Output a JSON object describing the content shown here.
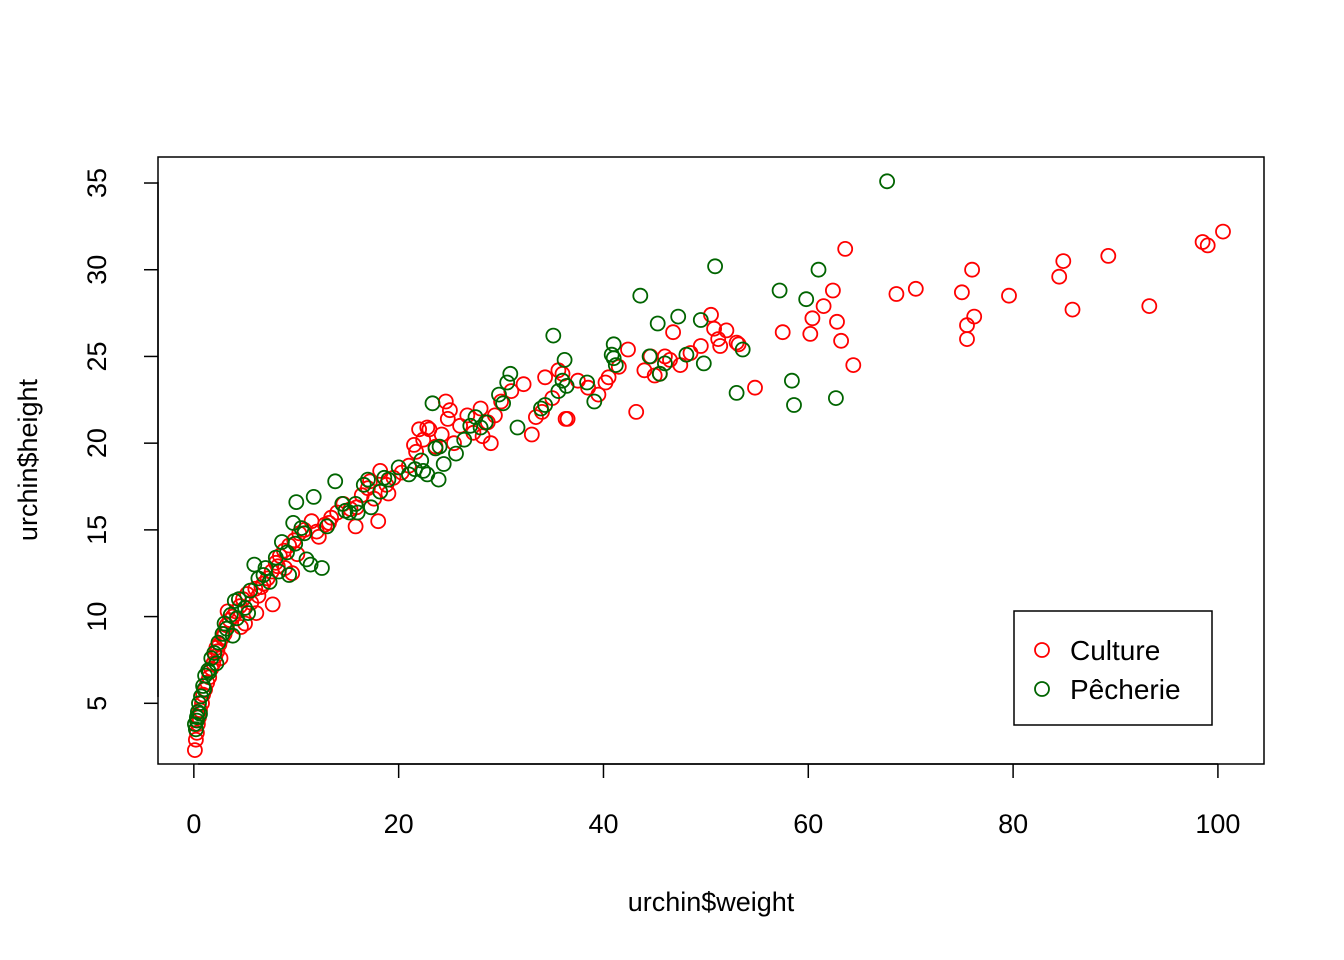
{
  "chart_data": {
    "type": "scatter",
    "title": "",
    "xlabel": "urchin$weight",
    "ylabel": "urchin$height",
    "xlim": [
      -3.5,
      104.5
    ],
    "ylim": [
      1.5,
      36.5
    ],
    "x_ticks": [
      0,
      20,
      40,
      60,
      80,
      100
    ],
    "y_ticks": [
      5,
      10,
      15,
      20,
      25,
      30,
      35
    ],
    "x_tick_labels": [
      "0",
      "20",
      "40",
      "60",
      "80",
      "100"
    ],
    "y_tick_labels": [
      "5",
      "10",
      "15",
      "20",
      "25",
      "30",
      "35"
    ],
    "grid": false,
    "legend_position": "bottom-right",
    "series": [
      {
        "name": "Culture",
        "color": "#FF0000",
        "marker": "open-circle",
        "points": [
          [
            0.1,
            2.3
          ],
          [
            0.2,
            2.9
          ],
          [
            0.3,
            3.3
          ],
          [
            0.4,
            3.8
          ],
          [
            0.5,
            4.2
          ],
          [
            0.6,
            4.6
          ],
          [
            0.8,
            5.0
          ],
          [
            0.9,
            5.5
          ],
          [
            1.1,
            5.8
          ],
          [
            1.3,
            6.2
          ],
          [
            1.5,
            6.5
          ],
          [
            1.7,
            7.0
          ],
          [
            1.9,
            7.3
          ],
          [
            2.1,
            7.7
          ],
          [
            2.3,
            8.0
          ],
          [
            2.5,
            8.4
          ],
          [
            2.8,
            8.8
          ],
          [
            3.0,
            9.0
          ],
          [
            3.2,
            9.5
          ],
          [
            3.5,
            9.8
          ],
          [
            2.2,
            8.2
          ],
          [
            2.6,
            7.6
          ],
          [
            3.8,
            10.0
          ],
          [
            4.1,
            10.3
          ],
          [
            4.5,
            10.6
          ],
          [
            4.8,
            11.0
          ],
          [
            5.2,
            11.3
          ],
          [
            5.6,
            10.8
          ],
          [
            6.0,
            11.6
          ],
          [
            6.3,
            11.2
          ],
          [
            6.8,
            11.9
          ],
          [
            7.2,
            12.2
          ],
          [
            7.6,
            12.6
          ],
          [
            8.0,
            13.1
          ],
          [
            8.4,
            13.5
          ],
          [
            8.8,
            13.8
          ],
          [
            9.3,
            14.1
          ],
          [
            9.8,
            14.4
          ],
          [
            10.3,
            14.8
          ],
          [
            10.8,
            15.0
          ],
          [
            5.0,
            9.6
          ],
          [
            6.1,
            10.2
          ],
          [
            7.7,
            10.7
          ],
          [
            8.9,
            12.8
          ],
          [
            9.6,
            12.5
          ],
          [
            10.1,
            13.6
          ],
          [
            11.5,
            15.5
          ],
          [
            12.2,
            14.6
          ],
          [
            12.8,
            15.3
          ],
          [
            13.4,
            15.7
          ],
          [
            14.0,
            16.0
          ],
          [
            14.6,
            16.5
          ],
          [
            15.3,
            16.2
          ],
          [
            15.8,
            15.2
          ],
          [
            16.4,
            17.0
          ],
          [
            17.0,
            17.4
          ],
          [
            17.6,
            16.8
          ],
          [
            18.2,
            18.4
          ],
          [
            18.0,
            15.5
          ],
          [
            18.8,
            17.6
          ],
          [
            19.5,
            18.0
          ],
          [
            20.3,
            18.3
          ],
          [
            21.0,
            18.7
          ],
          [
            21.7,
            19.5
          ],
          [
            22.4,
            20.2
          ],
          [
            23.0,
            20.8
          ],
          [
            23.6,
            19.8
          ],
          [
            24.2,
            20.5
          ],
          [
            24.8,
            21.4
          ],
          [
            25.4,
            20.0
          ],
          [
            26.0,
            21.0
          ],
          [
            26.7,
            21.6
          ],
          [
            27.3,
            20.6
          ],
          [
            28.0,
            22.0
          ],
          [
            28.7,
            21.2
          ],
          [
            29.4,
            21.6
          ],
          [
            30.0,
            22.4
          ],
          [
            31.0,
            23.0
          ],
          [
            32.2,
            23.4
          ],
          [
            33.0,
            20.5
          ],
          [
            34.0,
            21.8
          ],
          [
            35.0,
            22.6
          ],
          [
            36.0,
            24.0
          ],
          [
            36.3,
            21.4
          ],
          [
            37.5,
            23.6
          ],
          [
            38.5,
            23.2
          ],
          [
            39.5,
            22.8
          ],
          [
            40.5,
            23.8
          ],
          [
            41.5,
            24.4
          ],
          [
            42.4,
            25.4
          ],
          [
            43.2,
            21.8
          ],
          [
            44.0,
            24.2
          ],
          [
            45.0,
            23.9
          ],
          [
            46.0,
            25.0
          ],
          [
            46.8,
            26.4
          ],
          [
            47.5,
            24.5
          ],
          [
            48.5,
            25.2
          ],
          [
            49.5,
            25.6
          ],
          [
            50.5,
            27.4
          ],
          [
            51.2,
            26.0
          ],
          [
            52.0,
            26.5
          ],
          [
            53.0,
            25.8
          ],
          [
            54.8,
            23.2
          ],
          [
            57.5,
            26.4
          ],
          [
            60.2,
            26.3
          ],
          [
            60.4,
            27.2
          ],
          [
            61.5,
            27.9
          ],
          [
            62.4,
            28.8
          ],
          [
            62.8,
            27.0
          ],
          [
            63.2,
            25.9
          ],
          [
            63.6,
            31.2
          ],
          [
            64.4,
            24.5
          ],
          [
            68.6,
            28.6
          ],
          [
            70.5,
            28.9
          ],
          [
            75.0,
            28.7
          ],
          [
            75.5,
            26.8
          ],
          [
            75.5,
            26.0
          ],
          [
            76.0,
            30.0
          ],
          [
            76.2,
            27.3
          ],
          [
            79.6,
            28.5
          ],
          [
            84.5,
            29.6
          ],
          [
            84.9,
            30.5
          ],
          [
            85.8,
            27.7
          ],
          [
            89.3,
            30.8
          ],
          [
            93.3,
            27.9
          ],
          [
            98.5,
            31.6
          ],
          [
            99.0,
            31.4
          ],
          [
            100.5,
            32.2
          ],
          [
            22.0,
            20.8
          ],
          [
            24.6,
            22.4
          ],
          [
            3.3,
            10.3
          ],
          [
            4.6,
            9.4
          ],
          [
            6.6,
            11.7
          ],
          [
            8.2,
            12.9
          ],
          [
            12.0,
            14.9
          ],
          [
            13.2,
            15.4
          ],
          [
            15.9,
            16.3
          ],
          [
            17.2,
            17.8
          ],
          [
            19.0,
            17.1
          ],
          [
            21.5,
            19.9
          ],
          [
            22.8,
            20.9
          ],
          [
            25.0,
            21.9
          ],
          [
            28.2,
            20.4
          ],
          [
            29.0,
            20.0
          ],
          [
            33.4,
            21.5
          ],
          [
            34.3,
            23.8
          ],
          [
            35.6,
            24.2
          ],
          [
            36.5,
            21.4
          ],
          [
            40.2,
            23.5
          ],
          [
            44.6,
            25.0
          ],
          [
            45.5,
            24.0
          ],
          [
            46.5,
            24.8
          ],
          [
            50.8,
            26.6
          ],
          [
            51.4,
            25.6
          ],
          [
            53.2,
            25.7
          ]
        ]
      },
      {
        "name": "Pêcherie",
        "color": "#006400",
        "marker": "open-circle",
        "points": [
          [
            0.2,
            3.5
          ],
          [
            0.3,
            4.0
          ],
          [
            0.4,
            4.5
          ],
          [
            0.5,
            5.0
          ],
          [
            0.7,
            5.4
          ],
          [
            0.9,
            6.0
          ],
          [
            1.1,
            6.6
          ],
          [
            1.4,
            6.9
          ],
          [
            1.7,
            7.6
          ],
          [
            2.0,
            7.9
          ],
          [
            2.4,
            8.5
          ],
          [
            2.8,
            9.0
          ],
          [
            3.2,
            9.3
          ],
          [
            3.6,
            10.1
          ],
          [
            4.0,
            10.9
          ],
          [
            4.4,
            11.0
          ],
          [
            5.0,
            10.5
          ],
          [
            5.5,
            11.5
          ],
          [
            5.9,
            13.0
          ],
          [
            6.3,
            12.2
          ],
          [
            6.8,
            12.4
          ],
          [
            7.4,
            12.0
          ],
          [
            8.0,
            13.4
          ],
          [
            8.6,
            14.3
          ],
          [
            9.1,
            13.7
          ],
          [
            9.7,
            15.4
          ],
          [
            10.0,
            16.6
          ],
          [
            10.5,
            15.1
          ],
          [
            11.0,
            13.3
          ],
          [
            11.4,
            13.0
          ],
          [
            11.7,
            16.9
          ],
          [
            12.5,
            12.8
          ],
          [
            13.8,
            17.8
          ],
          [
            14.5,
            16.5
          ],
          [
            15.2,
            16.0
          ],
          [
            15.8,
            16.5
          ],
          [
            16.6,
            17.6
          ],
          [
            17.3,
            16.3
          ],
          [
            18.2,
            17.2
          ],
          [
            19.0,
            17.9
          ],
          [
            20.0,
            18.6
          ],
          [
            21.0,
            18.2
          ],
          [
            21.6,
            18.5
          ],
          [
            22.2,
            19.0
          ],
          [
            22.8,
            18.2
          ],
          [
            23.3,
            22.3
          ],
          [
            23.6,
            19.7
          ],
          [
            23.9,
            17.9
          ],
          [
            24.4,
            18.8
          ],
          [
            25.6,
            19.4
          ],
          [
            27.0,
            21.0
          ],
          [
            27.5,
            21.5
          ],
          [
            28.0,
            20.9
          ],
          [
            29.8,
            22.8
          ],
          [
            30.2,
            22.3
          ],
          [
            30.6,
            23.5
          ],
          [
            30.9,
            24.0
          ],
          [
            31.6,
            20.9
          ],
          [
            33.9,
            22.0
          ],
          [
            35.1,
            26.2
          ],
          [
            35.6,
            23.0
          ],
          [
            36.0,
            23.6
          ],
          [
            36.2,
            24.8
          ],
          [
            39.1,
            22.4
          ],
          [
            40.8,
            25.1
          ],
          [
            41.0,
            25.7
          ],
          [
            41.2,
            24.5
          ],
          [
            43.6,
            28.5
          ],
          [
            45.3,
            26.9
          ],
          [
            45.5,
            24.0
          ],
          [
            47.3,
            27.3
          ],
          [
            48.1,
            25.1
          ],
          [
            49.5,
            27.1
          ],
          [
            49.8,
            24.6
          ],
          [
            50.9,
            30.2
          ],
          [
            53.0,
            22.9
          ],
          [
            53.6,
            25.4
          ],
          [
            57.2,
            28.8
          ],
          [
            58.4,
            23.6
          ],
          [
            58.6,
            22.2
          ],
          [
            59.8,
            28.3
          ],
          [
            61.0,
            30.0
          ],
          [
            62.7,
            22.6
          ],
          [
            67.7,
            35.1
          ],
          [
            1.0,
            5.8
          ],
          [
            1.5,
            6.8
          ],
          [
            2.2,
            7.3
          ],
          [
            3.0,
            9.6
          ],
          [
            3.8,
            8.9
          ],
          [
            4.2,
            9.9
          ],
          [
            5.3,
            10.2
          ],
          [
            7.0,
            12.8
          ],
          [
            8.3,
            12.6
          ],
          [
            9.3,
            12.4
          ],
          [
            9.9,
            14.2
          ],
          [
            10.8,
            14.8
          ],
          [
            13.0,
            15.2
          ],
          [
            14.8,
            16.1
          ],
          [
            16.0,
            16.0
          ],
          [
            17.0,
            17.9
          ],
          [
            18.6,
            18.0
          ],
          [
            22.4,
            18.4
          ],
          [
            24.0,
            19.8
          ],
          [
            26.4,
            20.2
          ],
          [
            28.5,
            21.2
          ],
          [
            34.3,
            22.2
          ],
          [
            36.4,
            23.3
          ],
          [
            38.4,
            23.5
          ],
          [
            41.0,
            24.9
          ],
          [
            44.5,
            25.0
          ],
          [
            46.0,
            24.6
          ],
          [
            0.6,
            4.4
          ],
          [
            0.1,
            3.8
          ],
          [
            0.3,
            4.2
          ]
        ]
      }
    ]
  }
}
